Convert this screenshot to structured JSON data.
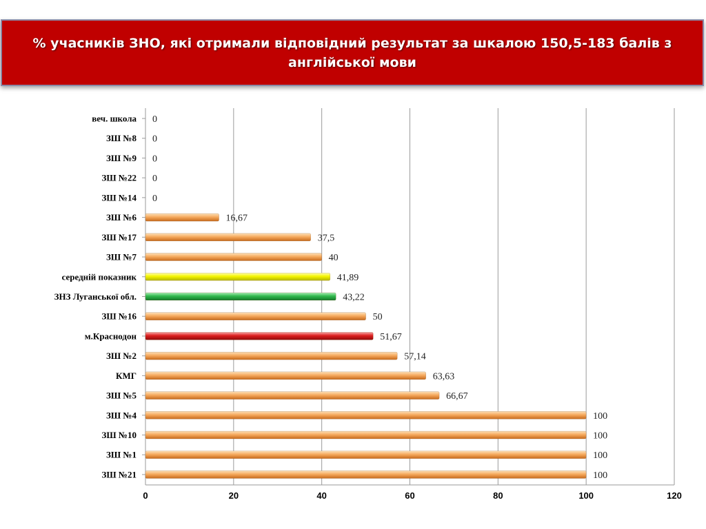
{
  "title": "% учасників ЗНО, які отримали відповідний результат за шкалою 150,5-183 балів з англійської мови",
  "colors": {
    "banner": "#c00000",
    "default_bar": "#f0a050",
    "average_bar": "#f2f200",
    "region_bar": "#2fb34a",
    "city_bar": "#d61a1a"
  },
  "chart_data": {
    "type": "bar",
    "orientation": "horizontal",
    "categories": [
      "веч. школа",
      "ЗШ №8",
      "ЗШ №9",
      "ЗШ №22",
      "ЗШ №14",
      "ЗШ №6",
      "ЗШ №17",
      "ЗШ №7",
      "середній показник",
      "ЗНЗ Луганської обл.",
      "ЗШ №16",
      "м.Краснодон",
      "ЗШ №2",
      "КМГ",
      "ЗШ №5",
      "ЗШ №4",
      "ЗШ №10",
      "ЗШ №1",
      "ЗШ №21"
    ],
    "values": [
      0,
      0,
      0,
      0,
      0,
      16.67,
      37.5,
      40,
      41.89,
      43.22,
      50,
      51.67,
      57.14,
      63.63,
      66.67,
      100,
      100,
      100,
      100
    ],
    "value_labels": [
      "0",
      "0",
      "0",
      "0",
      "0",
      "16,67",
      "37,5",
      "40",
      "41,89",
      "43,22",
      "50",
      "51,67",
      "57,14",
      "63,63",
      "66,67",
      "100",
      "100",
      "100",
      "100"
    ],
    "bar_colors": [
      "default",
      "default",
      "default",
      "default",
      "default",
      "default",
      "default",
      "default",
      "average",
      "region",
      "default",
      "city",
      "default",
      "default",
      "default",
      "default",
      "default",
      "default",
      "default"
    ],
    "xlim": [
      0,
      120
    ],
    "xticks": [
      0,
      20,
      40,
      60,
      80,
      100,
      120
    ],
    "xtick_labels": [
      "0",
      "20",
      "40",
      "60",
      "80",
      "100",
      "120"
    ],
    "grid": "vertical"
  }
}
